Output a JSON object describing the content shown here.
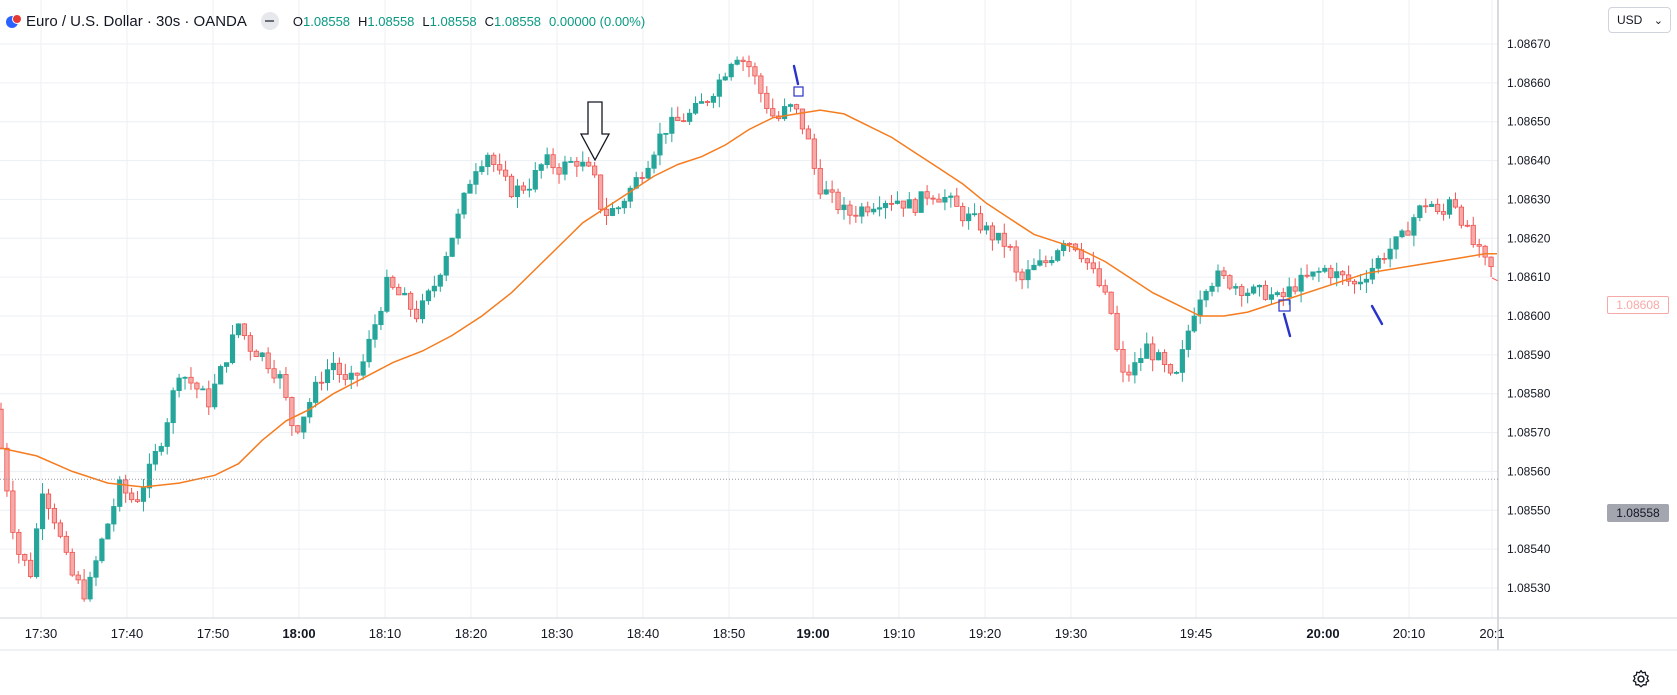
{
  "header": {
    "symbol_title": "Euro / U.S. Dollar · 30s · OANDA",
    "ohlc": {
      "o_label": "O",
      "o": "1.08558",
      "h_label": "H",
      "h": "1.08558",
      "l_label": "L",
      "l": "1.08558",
      "c_label": "C",
      "c": "1.08558",
      "change": "0.00000 (0.00%)"
    }
  },
  "currency_selector": {
    "label": "USD"
  },
  "price_labels": {
    "red_line": "1.08608",
    "last_price": "1.08558"
  },
  "colors": {
    "up": "#26a69a",
    "down": "#ef5350",
    "ma": "#f57c1f",
    "grid": "#eceff3",
    "annotation": "#2933c9"
  },
  "icons": {
    "settings": "gear-icon",
    "symbol": "flag-icon",
    "annotation_arrow": "down-arrow-icon"
  },
  "chart_data": {
    "type": "candlestick",
    "title": "Euro / U.S. Dollar · 30s · OANDA",
    "x_ticks": [
      "17:30",
      "17:40",
      "17:50",
      "18:00",
      "18:10",
      "18:20",
      "18:30",
      "18:40",
      "18:50",
      "19:00",
      "19:10",
      "19:20",
      "19:30",
      "19:45",
      "20:00",
      "20:10",
      "20:1"
    ],
    "bold_x_ticks": [
      "18:00",
      "19:00",
      "20:00"
    ],
    "y_ticks": [
      "1.08670",
      "1.08660",
      "1.08650",
      "1.08640",
      "1.08630",
      "1.08620",
      "1.08610",
      "1.08600",
      "1.08590",
      "1.08580",
      "1.08570",
      "1.08560",
      "1.08550",
      "1.08540",
      "1.08530"
    ],
    "ylim": [
      1.08523,
      1.08674
    ],
    "xlim_minutes": [
      -5.0,
      26.5
    ],
    "grid": true,
    "last_price": 1.08558,
    "price_path": [
      [
        -5.0,
        1.08576
      ],
      [
        -4.3,
        1.08562
      ],
      [
        -3.2,
        1.0854
      ],
      [
        -2.0,
        1.08534
      ],
      [
        -1.0,
        1.08556
      ],
      [
        0.0,
        1.08548
      ],
      [
        1.3,
        1.08534
      ],
      [
        2.7,
        1.08528
      ],
      [
        4.0,
        1.08542
      ],
      [
        5.5,
        1.08556
      ],
      [
        6.8,
        1.08552
      ],
      [
        8.0,
        1.0856
      ],
      [
        9.2,
        1.0857
      ],
      [
        10.5,
        1.08586
      ],
      [
        11.8,
        1.08582
      ],
      [
        13.0,
        1.08578
      ],
      [
        14.3,
        1.08588
      ],
      [
        15.5,
        1.08598
      ],
      [
        16.5,
        1.08592
      ],
      [
        17.5,
        1.0859
      ],
      [
        19.0,
        1.08584
      ],
      [
        20.2,
        1.0857
      ],
      [
        21.2,
        1.08576
      ],
      [
        22.4,
        1.08584
      ],
      [
        23.5,
        1.08588
      ],
      [
        24.6,
        1.08582
      ],
      [
        25.8,
        1.08586
      ],
      [
        26.8,
        1.08596
      ],
      [
        28.0,
        1.08608
      ],
      [
        29.5,
        1.08604
      ],
      [
        30.6,
        1.086
      ],
      [
        32.0,
        1.08608
      ],
      [
        33.2,
        1.08618
      ],
      [
        34.3,
        1.08628
      ],
      [
        35.3,
        1.08638
      ],
      [
        36.5,
        1.08642
      ],
      [
        37.5,
        1.08636
      ],
      [
        38.6,
        1.08632
      ],
      [
        40.0,
        1.08634
      ],
      [
        41.3,
        1.0864
      ],
      [
        42.5,
        1.08638
      ],
      [
        44.0,
        1.0864
      ],
      [
        45.4,
        1.08636
      ],
      [
        46.2,
        1.08626
      ],
      [
        47.5,
        1.08628
      ],
      [
        48.8,
        1.08634
      ],
      [
        50.0,
        1.0864
      ],
      [
        51.3,
        1.08648
      ],
      [
        52.5,
        1.0865
      ],
      [
        53.7,
        1.08652
      ],
      [
        55.0,
        1.08656
      ],
      [
        56.3,
        1.08662
      ],
      [
        57.3,
        1.08668
      ],
      [
        58.6,
        1.08664
      ],
      [
        59.7,
        1.08656
      ],
      [
        60.8,
        1.0865
      ],
      [
        61.8,
        1.08654
      ],
      [
        62.6,
        1.08652
      ],
      [
        63.4,
        1.08646
      ],
      [
        64.3,
        1.08634
      ],
      [
        65.5,
        1.0863
      ],
      [
        66.8,
        1.08626
      ],
      [
        68.2,
        1.08628
      ],
      [
        69.6,
        1.0863
      ],
      [
        71.0,
        1.0863
      ],
      [
        72.3,
        1.08628
      ],
      [
        73.7,
        1.08632
      ],
      [
        75.2,
        1.0863
      ],
      [
        76.5,
        1.08626
      ],
      [
        77.8,
        1.08624
      ],
      [
        79.2,
        1.0862
      ],
      [
        80.4,
        1.08618
      ],
      [
        81.2,
        1.08608
      ],
      [
        82.3,
        1.08612
      ],
      [
        83.6,
        1.08614
      ],
      [
        85.0,
        1.0862
      ],
      [
        86.2,
        1.08618
      ],
      [
        87.3,
        1.08612
      ],
      [
        88.3,
        1.08606
      ],
      [
        89.1,
        1.086
      ],
      [
        89.8,
        1.08584
      ],
      [
        90.8,
        1.08586
      ],
      [
        92.0,
        1.08592
      ],
      [
        93.2,
        1.08588
      ],
      [
        94.3,
        1.08582
      ],
      [
        95.0,
        1.0859
      ],
      [
        95.8,
        1.086
      ],
      [
        96.8,
        1.08608
      ],
      [
        98.0,
        1.0861
      ],
      [
        99.5,
        1.08608
      ],
      [
        100.8,
        1.08606
      ],
      [
        102.0,
        1.08606
      ],
      [
        103.2,
        1.08604
      ],
      [
        104.5,
        1.08608
      ],
      [
        105.8,
        1.0861
      ],
      [
        107.0,
        1.08612
      ],
      [
        108.4,
        1.0861
      ],
      [
        109.5,
        1.08608
      ],
      [
        110.8,
        1.08612
      ],
      [
        112.0,
        1.08616
      ],
      [
        113.5,
        1.0862
      ],
      [
        114.6,
        1.08626
      ],
      [
        115.8,
        1.0863
      ],
      [
        116.8,
        1.08624
      ],
      [
        117.6,
        1.08632
      ],
      [
        118.4,
        1.08626
      ],
      [
        119.2,
        1.0862
      ],
      [
        120.0,
        1.08616
      ],
      [
        120.8,
        1.08612
      ]
    ],
    "moving_average": {
      "points": [
        [
          -5.0,
          1.08566
        ],
        [
          -2.0,
          1.08564
        ],
        [
          1.0,
          1.0856
        ],
        [
          4.0,
          1.08557
        ],
        [
          7.0,
          1.08556
        ],
        [
          10.0,
          1.08557
        ],
        [
          13.0,
          1.08559
        ],
        [
          15.0,
          1.08562
        ],
        [
          17.0,
          1.08568
        ],
        [
          19.0,
          1.08573
        ],
        [
          21.0,
          1.08576
        ],
        [
          23.0,
          1.0858
        ],
        [
          25.5,
          1.08584
        ],
        [
          28.0,
          1.08588
        ],
        [
          30.5,
          1.08591
        ],
        [
          33.0,
          1.08595
        ],
        [
          35.5,
          1.086
        ],
        [
          38.0,
          1.08606
        ],
        [
          40.0,
          1.08612
        ],
        [
          42.0,
          1.08618
        ],
        [
          44.0,
          1.08624
        ],
        [
          46.0,
          1.08628
        ],
        [
          48.0,
          1.08632
        ],
        [
          50.0,
          1.08636
        ],
        [
          52.0,
          1.08639
        ],
        [
          54.0,
          1.08641
        ],
        [
          56.0,
          1.08644
        ],
        [
          58.0,
          1.08648
        ],
        [
          60.0,
          1.08651
        ],
        [
          62.0,
          1.08652
        ],
        [
          64.0,
          1.08653
        ],
        [
          66.0,
          1.08652
        ],
        [
          68.0,
          1.08649
        ],
        [
          70.0,
          1.08646
        ],
        [
          72.0,
          1.08642
        ],
        [
          74.0,
          1.08638
        ],
        [
          76.0,
          1.08634
        ],
        [
          78.0,
          1.08629
        ],
        [
          80.0,
          1.08625
        ],
        [
          82.0,
          1.08621
        ],
        [
          84.0,
          1.08619
        ],
        [
          86.0,
          1.08617
        ],
        [
          88.0,
          1.08614
        ],
        [
          90.0,
          1.0861
        ],
        [
          92.0,
          1.08606
        ],
        [
          94.0,
          1.08603
        ],
        [
          96.0,
          1.086
        ],
        [
          98.0,
          1.086
        ],
        [
          100.0,
          1.08601
        ],
        [
          102.0,
          1.08603
        ],
        [
          104.0,
          1.08605
        ],
        [
          106.0,
          1.08607
        ],
        [
          108.0,
          1.08609
        ],
        [
          110.0,
          1.08611
        ],
        [
          112.0,
          1.08612
        ],
        [
          114.0,
          1.08613
        ],
        [
          116.0,
          1.08614
        ],
        [
          118.0,
          1.08615
        ],
        [
          120.0,
          1.08616
        ],
        [
          121.0,
          1.08616
        ]
      ]
    },
    "annotations": [
      {
        "type": "down-arrow",
        "label": "hollow down arrow marker"
      },
      {
        "type": "blue-strokes",
        "label": "drawn pen strokes"
      },
      {
        "type": "square-markers",
        "label": "small box markers"
      }
    ]
  }
}
